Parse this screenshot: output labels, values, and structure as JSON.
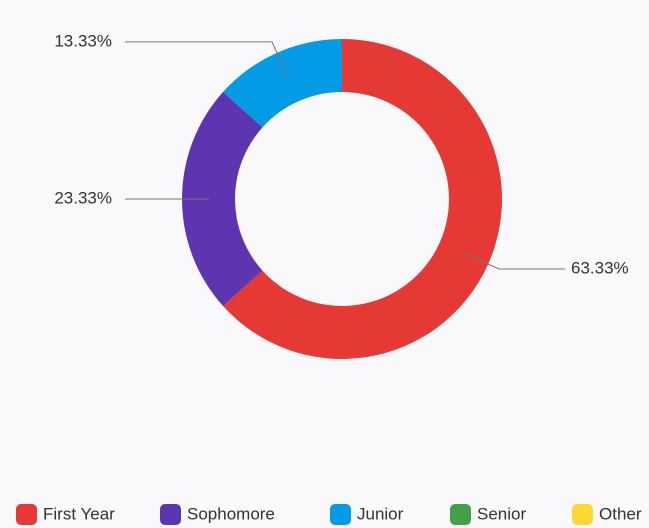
{
  "chart_data": {
    "type": "donut",
    "categories": [
      "First Year",
      "Sophomore",
      "Junior",
      "Senior",
      "Other"
    ],
    "values": [
      63.33,
      23.33,
      13.33,
      0,
      0
    ],
    "value_labels": [
      "63.33%",
      "23.33%",
      "13.33%",
      null,
      null
    ],
    "colors": [
      "#e53935",
      "#5e35b1",
      "#039be5",
      "#43a047",
      "#fdd835"
    ],
    "legend": "bottom"
  }
}
